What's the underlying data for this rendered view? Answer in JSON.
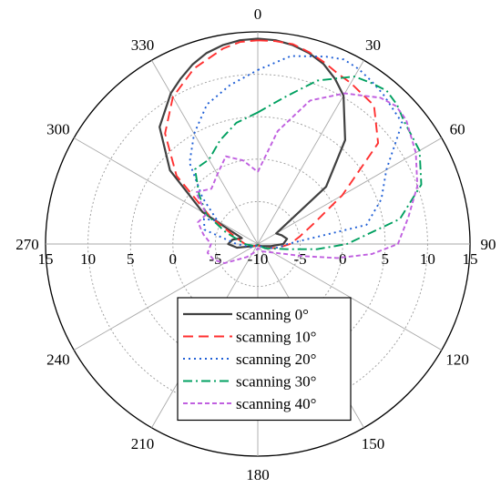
{
  "chart_data": {
    "type": "polar-line",
    "angle_ticks": [
      "0",
      "30",
      "60",
      "90",
      "120",
      "150",
      "180",
      "210",
      "240",
      "270",
      "300",
      "330"
    ],
    "radial_ticks": [
      {
        "value": -10,
        "label": "-10"
      },
      {
        "value": -5,
        "label": "-5"
      },
      {
        "value": 0,
        "label": "0"
      },
      {
        "value": 5,
        "label": "5"
      },
      {
        "value": 10,
        "label": "10"
      },
      {
        "value": 15,
        "label": "15"
      }
    ],
    "rlim": [
      -10,
      15
    ],
    "angle_zero": "top",
    "angle_direction": "clockwise",
    "grid": true,
    "legend_position": "bottom-center",
    "series": [
      {
        "name": "scanning 0°",
        "color": "#404040",
        "dash": "solid",
        "theta": [
          0,
          5,
          10,
          15,
          20,
          25,
          30,
          40,
          50,
          60,
          70,
          80,
          90,
          100,
          120,
          150,
          180,
          210,
          240,
          260,
          270,
          280,
          290,
          300,
          310,
          320,
          330,
          335,
          340,
          345,
          350,
          355,
          360
        ],
        "r": [
          14.2,
          14.1,
          13.8,
          13.3,
          12.6,
          11.5,
          10.2,
          6.0,
          0.5,
          -7.5,
          -7.0,
          -6.5,
          -7.0,
          -8.5,
          -9.5,
          -9.8,
          -9.9,
          -9.8,
          -9.5,
          -7.5,
          -6.5,
          -7.0,
          -8.0,
          -2.5,
          3.5,
          8.0,
          10.5,
          11.5,
          12.5,
          13.3,
          13.8,
          14.1,
          14.2
        ]
      },
      {
        "name": "scanning 10°",
        "color": "#ff3030",
        "dash": "long-dash",
        "theta": [
          0,
          5,
          10,
          15,
          20,
          25,
          30,
          40,
          50,
          60,
          70,
          80,
          90,
          100,
          120,
          150,
          180,
          210,
          240,
          270,
          285,
          300,
          310,
          320,
          330,
          340,
          350,
          355,
          360
        ],
        "r": [
          14.0,
          14.0,
          13.9,
          13.4,
          12.8,
          12.2,
          11.9,
          11.3,
          8.5,
          1.5,
          -3.0,
          -5.0,
          -6.2,
          -7.5,
          -9.0,
          -9.8,
          -9.9,
          -9.8,
          -9.5,
          -8.5,
          -7.5,
          -3.5,
          2.5,
          7.0,
          10.0,
          12.0,
          13.4,
          13.9,
          14.0
        ]
      },
      {
        "name": "scanning 20°",
        "color": "#1f5fd6",
        "dash": "dot",
        "theta": [
          0,
          10,
          20,
          25,
          30,
          35,
          40,
          50,
          60,
          70,
          80,
          90,
          100,
          120,
          150,
          180,
          210,
          240,
          270,
          285,
          295,
          300,
          310,
          320,
          330,
          340,
          350,
          360
        ],
        "r": [
          10.5,
          12.5,
          13.5,
          14.0,
          13.8,
          13.4,
          13.0,
          12.2,
          7.5,
          5.5,
          3.0,
          -6.5,
          -7.5,
          -9.0,
          -9.8,
          -9.9,
          -9.8,
          -9.2,
          -7.5,
          -3.5,
          -3.0,
          -4.5,
          -1.5,
          2.5,
          5.0,
          7.5,
          9.0,
          10.5
        ]
      },
      {
        "name": "scanning 30°",
        "color": "#00a060",
        "dash": "dash-dot",
        "theta": [
          0,
          10,
          20,
          30,
          35,
          40,
          45,
          50,
          60,
          70,
          80,
          90,
          95,
          100,
          120,
          150,
          180,
          210,
          240,
          270,
          290,
          300,
          310,
          320,
          330,
          340,
          350,
          360
        ],
        "r": [
          5.5,
          7.5,
          10.5,
          12.8,
          13.2,
          13.6,
          13.2,
          12.5,
          12.0,
          10.5,
          7.0,
          0.5,
          -3.0,
          -6.5,
          -9.0,
          -9.8,
          -9.9,
          -9.8,
          -9.5,
          -8.5,
          -6.0,
          -3.0,
          -1.0,
          1.5,
          1.5,
          3.0,
          4.5,
          5.5
        ]
      },
      {
        "name": "scanning 40°",
        "color": "#c060e0",
        "dash": "short-dash",
        "theta": [
          0,
          10,
          20,
          30,
          40,
          45,
          50,
          60,
          70,
          80,
          90,
          95,
          100,
          105,
          120,
          150,
          180,
          200,
          220,
          240,
          250,
          260,
          270,
          280,
          290,
          300,
          310,
          320,
          330,
          340,
          350,
          360
        ],
        "r": [
          -1.5,
          3.5,
          8.0,
          10.5,
          12.5,
          13.0,
          12.8,
          11.5,
          10.0,
          8.0,
          6.5,
          3.5,
          -0.5,
          -4.5,
          -8.0,
          -9.0,
          -9.5,
          -9.0,
          -8.0,
          -5.5,
          -4.5,
          -4.0,
          -4.5,
          -3.5,
          -2.5,
          -3.0,
          -0.5,
          -1.5,
          -0.5,
          1.0,
          0.0,
          -1.5
        ]
      }
    ]
  }
}
